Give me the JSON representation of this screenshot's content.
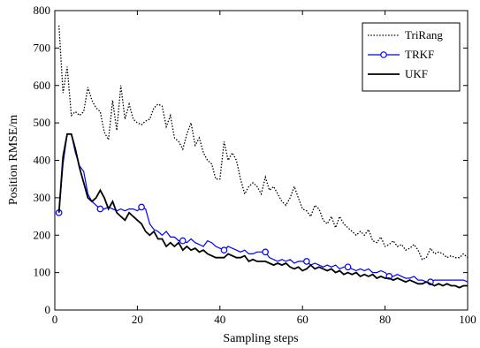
{
  "chart_data": {
    "type": "line",
    "xlabel": "Sampling steps",
    "ylabel": "Position RMSE/m",
    "xlim": [
      0,
      100
    ],
    "ylim": [
      0,
      800
    ],
    "xticks": [
      0,
      20,
      40,
      60,
      80,
      100
    ],
    "yticks": [
      0,
      100,
      200,
      300,
      400,
      500,
      600,
      700,
      800
    ],
    "grid": false,
    "legend_position": "top-right",
    "series": [
      {
        "name": "TriRang",
        "style": "dotted",
        "color": "#000000",
        "x": [
          1,
          2,
          3,
          4,
          5,
          6,
          7,
          8,
          9,
          10,
          11,
          12,
          13,
          14,
          15,
          16,
          17,
          18,
          19,
          20,
          21,
          22,
          23,
          24,
          25,
          26,
          27,
          28,
          29,
          30,
          31,
          32,
          33,
          34,
          35,
          36,
          37,
          38,
          39,
          40,
          41,
          42,
          43,
          44,
          45,
          46,
          47,
          48,
          49,
          50,
          51,
          52,
          53,
          54,
          55,
          56,
          57,
          58,
          59,
          60,
          61,
          62,
          63,
          64,
          65,
          66,
          67,
          68,
          69,
          70,
          71,
          72,
          73,
          74,
          75,
          76,
          77,
          78,
          79,
          80,
          81,
          82,
          83,
          84,
          85,
          86,
          87,
          88,
          89,
          90,
          91,
          92,
          93,
          94,
          95,
          96,
          97,
          98,
          99,
          100
        ],
        "y": [
          760,
          580,
          650,
          520,
          530,
          520,
          530,
          595,
          560,
          540,
          530,
          475,
          455,
          560,
          480,
          600,
          510,
          550,
          510,
          500,
          495,
          505,
          510,
          540,
          550,
          545,
          490,
          520,
          460,
          450,
          430,
          470,
          500,
          440,
          460,
          420,
          400,
          390,
          350,
          350,
          450,
          400,
          420,
          400,
          350,
          310,
          330,
          340,
          330,
          310,
          355,
          320,
          330,
          310,
          290,
          280,
          300,
          330,
          300,
          270,
          265,
          250,
          280,
          270,
          240,
          230,
          250,
          220,
          250,
          230,
          220,
          210,
          200,
          210,
          200,
          215,
          185,
          180,
          195,
          170,
          175,
          185,
          170,
          175,
          160,
          165,
          175,
          160,
          135,
          140,
          165,
          150,
          155,
          150,
          140,
          145,
          140,
          140,
          150,
          140
        ]
      },
      {
        "name": "TRKF",
        "style": "solid",
        "marker": "circle",
        "color": "#0000ff",
        "x": [
          1,
          2,
          3,
          4,
          5,
          6,
          7,
          8,
          9,
          10,
          11,
          12,
          13,
          14,
          15,
          16,
          17,
          18,
          19,
          20,
          21,
          22,
          23,
          24,
          25,
          26,
          27,
          28,
          29,
          30,
          31,
          32,
          33,
          34,
          35,
          36,
          37,
          38,
          39,
          40,
          41,
          42,
          43,
          44,
          45,
          46,
          47,
          48,
          49,
          50,
          51,
          52,
          53,
          54,
          55,
          56,
          57,
          58,
          59,
          60,
          61,
          62,
          63,
          64,
          65,
          66,
          67,
          68,
          69,
          70,
          71,
          72,
          73,
          74,
          75,
          76,
          77,
          78,
          79,
          80,
          81,
          82,
          83,
          84,
          85,
          86,
          87,
          88,
          89,
          90,
          91,
          92,
          93,
          94,
          95,
          96,
          97,
          98,
          99,
          100
        ],
        "y": [
          260,
          390,
          470,
          470,
          420,
          385,
          370,
          310,
          290,
          280,
          270,
          270,
          275,
          270,
          265,
          270,
          265,
          270,
          270,
          265,
          275,
          270,
          230,
          215,
          210,
          200,
          210,
          195,
          195,
          185,
          185,
          180,
          190,
          180,
          175,
          170,
          185,
          180,
          170,
          165,
          160,
          170,
          165,
          160,
          155,
          160,
          150,
          150,
          155,
          155,
          155,
          140,
          135,
          130,
          135,
          130,
          135,
          125,
          130,
          130,
          130,
          120,
          125,
          120,
          115,
          120,
          115,
          120,
          110,
          115,
          115,
          110,
          105,
          110,
          105,
          110,
          100,
          100,
          105,
          100,
          90,
          90,
          95,
          90,
          85,
          85,
          90,
          80,
          80,
          75,
          75,
          80,
          80,
          80,
          80,
          80,
          80,
          80,
          80,
          75
        ],
        "marker_x": [
          1,
          11,
          21,
          31,
          41,
          51,
          61,
          71,
          81,
          91
        ],
        "marker_y": [
          260,
          270,
          275,
          185,
          160,
          155,
          130,
          115,
          90,
          75
        ]
      },
      {
        "name": "UKF",
        "style": "solid",
        "color": "#000000",
        "x": [
          1,
          2,
          3,
          4,
          5,
          6,
          7,
          8,
          9,
          10,
          11,
          12,
          13,
          14,
          15,
          16,
          17,
          18,
          19,
          20,
          21,
          22,
          23,
          24,
          25,
          26,
          27,
          28,
          29,
          30,
          31,
          32,
          33,
          34,
          35,
          36,
          37,
          38,
          39,
          40,
          41,
          42,
          43,
          44,
          45,
          46,
          47,
          48,
          49,
          50,
          51,
          52,
          53,
          54,
          55,
          56,
          57,
          58,
          59,
          60,
          61,
          62,
          63,
          64,
          65,
          66,
          67,
          68,
          69,
          70,
          71,
          72,
          73,
          74,
          75,
          76,
          77,
          78,
          79,
          80,
          81,
          82,
          83,
          84,
          85,
          86,
          87,
          88,
          89,
          90,
          91,
          92,
          93,
          94,
          95,
          96,
          97,
          98,
          99,
          100
        ],
        "y": [
          260,
          410,
          470,
          470,
          430,
          380,
          340,
          300,
          290,
          300,
          320,
          300,
          270,
          290,
          260,
          250,
          240,
          260,
          250,
          240,
          230,
          210,
          200,
          210,
          190,
          190,
          170,
          180,
          170,
          180,
          160,
          170,
          160,
          165,
          155,
          160,
          150,
          145,
          140,
          140,
          140,
          150,
          145,
          140,
          140,
          145,
          130,
          135,
          130,
          130,
          130,
          125,
          120,
          125,
          120,
          125,
          115,
          110,
          115,
          105,
          110,
          120,
          110,
          115,
          110,
          105,
          110,
          100,
          105,
          95,
          100,
          95,
          100,
          90,
          95,
          90,
          95,
          85,
          90,
          85,
          85,
          80,
          85,
          80,
          75,
          80,
          75,
          70,
          70,
          75,
          70,
          65,
          70,
          65,
          70,
          65,
          65,
          60,
          65,
          65
        ]
      }
    ]
  }
}
